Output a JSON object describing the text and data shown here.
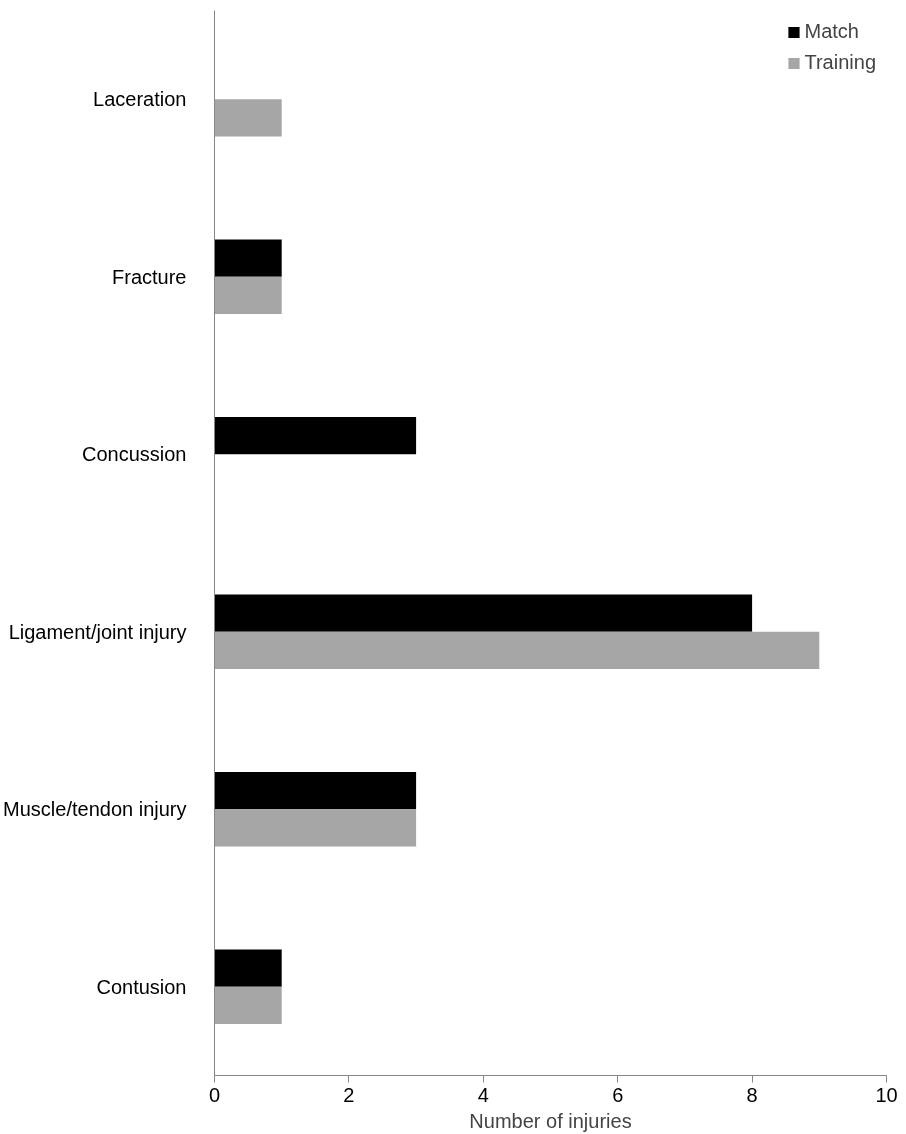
{
  "chart_data": {
    "type": "bar",
    "orientation": "horizontal",
    "xlabel": "Number of injuries",
    "categories": [
      "Laceration",
      "Fracture",
      "Concussion",
      "Ligament/joint injury",
      "Muscle/tendon injury",
      "Contusion"
    ],
    "series": [
      {
        "name": "Match",
        "color": "#000000",
        "values": [
          0,
          1,
          3,
          8,
          3,
          1
        ]
      },
      {
        "name": "Training",
        "color": "#a6a6a6",
        "values": [
          1,
          1,
          0,
          9,
          3,
          1
        ]
      }
    ],
    "xlim": [
      0,
      10
    ],
    "xticks": [
      0,
      2,
      4,
      6,
      8,
      10
    ],
    "grid": false,
    "legend": "top right"
  }
}
